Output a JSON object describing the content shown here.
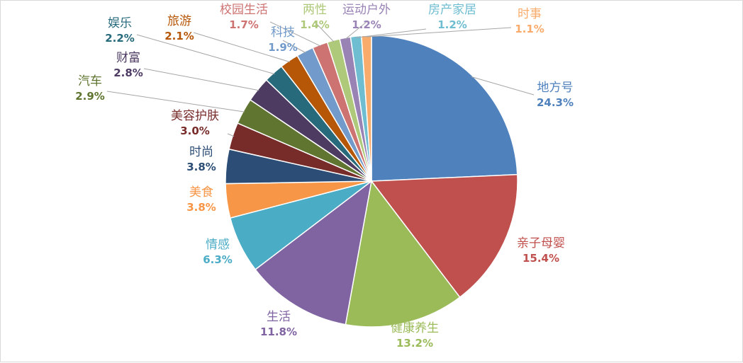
{
  "chart_data": {
    "type": "pie",
    "title": "",
    "unit": "%",
    "slices": [
      {
        "name": "地方号",
        "value": 24.3,
        "label": "24.3%",
        "color": "#4F81BD"
      },
      {
        "name": "亲子母婴",
        "value": 15.4,
        "label": "15.4%",
        "color": "#C0504D"
      },
      {
        "name": "健康养生",
        "value": 13.2,
        "label": "13.2%",
        "color": "#9BBB59"
      },
      {
        "name": "生活",
        "value": 11.8,
        "label": "11.8%",
        "color": "#8064A2"
      },
      {
        "name": "情感",
        "value": 6.3,
        "label": "6.3%",
        "color": "#4BACC6"
      },
      {
        "name": "美食",
        "value": 3.8,
        "label": "3.8%",
        "color": "#F79646"
      },
      {
        "name": "时尚",
        "value": 3.8,
        "label": "3.8%",
        "color": "#2C4D75"
      },
      {
        "name": "美容护肤",
        "value": 3.0,
        "label": "3.0%",
        "color": "#772C2A"
      },
      {
        "name": "汽车",
        "value": 2.9,
        "label": "2.9%",
        "color": "#5F7530"
      },
      {
        "name": "财富",
        "value": 2.8,
        "label": "2.8%",
        "color": "#4D3B62"
      },
      {
        "name": "娱乐",
        "value": 2.2,
        "label": "2.2%",
        "color": "#276A7C"
      },
      {
        "name": "旅游",
        "value": 2.1,
        "label": "2.1%",
        "color": "#B65708"
      },
      {
        "name": "科技",
        "value": 1.9,
        "label": "1.9%",
        "color": "#729ACA"
      },
      {
        "name": "校园生活",
        "value": 1.7,
        "label": "1.7%",
        "color": "#CD7371"
      },
      {
        "name": "两性",
        "value": 1.4,
        "label": "1.4%",
        "color": "#AFC97A"
      },
      {
        "name": "运动户外",
        "value": 1.2,
        "label": "1.2%",
        "color": "#9983B5"
      },
      {
        "name": "房产家居",
        "value": 1.2,
        "label": "1.2%",
        "color": "#6FBDD1"
      },
      {
        "name": "时事",
        "value": 1.1,
        "label": "1.1%",
        "color": "#F9AB6B"
      }
    ]
  }
}
